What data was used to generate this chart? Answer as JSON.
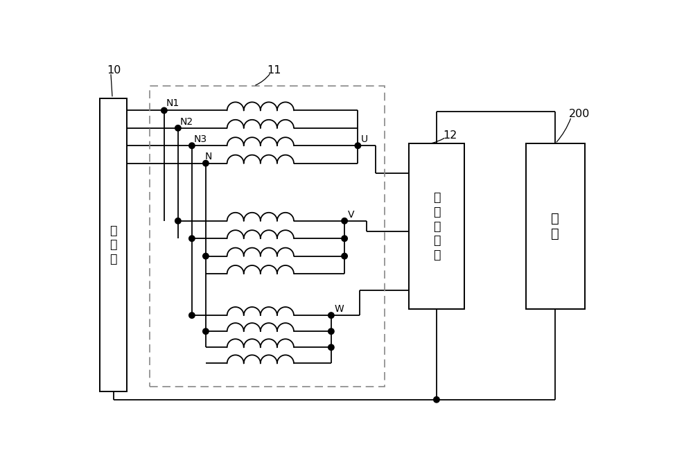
{
  "bg_color": "#ffffff",
  "line_color": "#000000",
  "dot_color": "#000000",
  "label_10": "10",
  "label_11": "11",
  "label_12": "12",
  "label_200": "200",
  "label_chongdiankou": "充\n电\n口",
  "label_bridge": "桥\n臂\n变\n换\n器",
  "label_battery": "电\n池",
  "label_N1": "N1",
  "label_N2": "N2",
  "label_N3": "N3",
  "label_N": "N",
  "label_U": "U",
  "label_V": "V",
  "label_W": "W"
}
